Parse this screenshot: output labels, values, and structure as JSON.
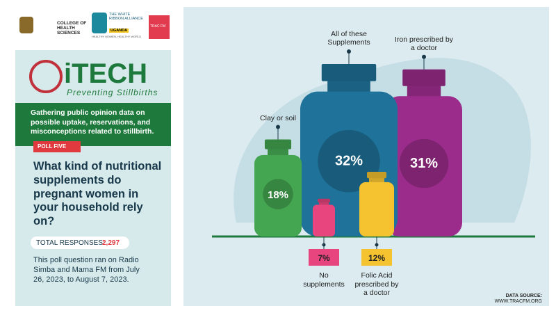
{
  "header": {
    "college": "COLLEGE OF HEALTH SCIENCES",
    "alliance": "THE WHITE RIBBON ALLIANCE",
    "alliance_country": "UGANDA",
    "alliance_tagline": "HEALTHY WOMEN, HEALTHY WORLD",
    "partner": "TRAC FM"
  },
  "brand": {
    "name": "iTECH",
    "tagline": "Preventing Stillbirths"
  },
  "intro": "Gathering public opinion data on possible uptake, reservations, and misconceptions related to stillbirth.",
  "poll_label": "POLL FIVE",
  "question": "What kind of nutritional supplements do pregnant women in your household rely on?",
  "responses": {
    "label": "TOTAL RESPONSES:",
    "value": "2,297"
  },
  "note": "This poll question ran on Radio Simba and Mama FM from July 26, 2023, to August 7, 2023.",
  "source": {
    "label": "DATA SOURCE:",
    "url": "WWW.TRACFM.ORG"
  },
  "chart_data": {
    "type": "bottle",
    "categories": [
      "Clay or soil",
      "All of these Supplements",
      "Iron prescribed by a doctor",
      "No supplements",
      "Folic Acid prescribed by a doctor"
    ],
    "values": [
      18,
      32,
      31,
      7,
      12
    ],
    "value_labels": [
      "18%",
      "32%",
      "31%",
      "7%",
      "12%"
    ],
    "colors": [
      "#44a650",
      "#1f729a",
      "#9c2c8c",
      "#e8457e",
      "#f6c330"
    ]
  }
}
